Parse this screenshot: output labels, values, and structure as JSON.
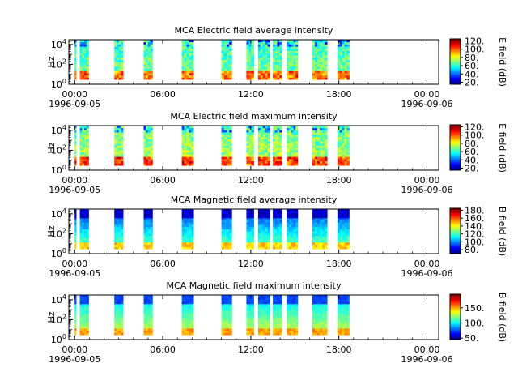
{
  "chart_data": [
    {
      "type": "heatmap",
      "title": "MCA  Electric field average intensity",
      "ylabel": "Hz",
      "yscale": "log",
      "ylim": [
        1,
        30000
      ],
      "y_ticks": [
        {
          "base": "10",
          "exp": "0",
          "value": 1
        },
        {
          "base": "10",
          "exp": "2",
          "value": 100
        },
        {
          "base": "10",
          "exp": "4",
          "value": 10000
        }
      ],
      "x_ticks": [
        "00:00",
        "06:00",
        "12:00",
        "18:00",
        "00:00"
      ],
      "x_tick_hours": [
        0,
        6,
        12,
        18,
        24
      ],
      "date_start": "1996-09-05",
      "date_end": "1996-09-06",
      "colorbar": {
        "label": "E field (dB)",
        "range": [
          15,
          125
        ],
        "ticks": [
          20,
          40,
          60,
          80,
          100,
          120
        ],
        "tick_labels": [
          "20.",
          "40.",
          "60.",
          "80.",
          "100.",
          "120."
        ]
      },
      "data_segments_hours": [
        [
          0.0,
          0.1
        ],
        [
          0.35,
          0.95
        ],
        [
          2.7,
          3.3
        ],
        [
          4.7,
          5.3
        ],
        [
          7.3,
          8.1
        ],
        [
          10.0,
          10.7
        ],
        [
          11.7,
          12.2
        ],
        [
          12.5,
          13.3
        ],
        [
          13.5,
          14.1
        ],
        [
          14.45,
          15.2
        ],
        [
          16.2,
          17.2
        ],
        [
          17.9,
          18.7
        ]
      ],
      "dominant_level_db": 60
    },
    {
      "type": "heatmap",
      "title": "MCA  Electric field maximum intensity",
      "ylabel": "Hz",
      "yscale": "log",
      "ylim": [
        1,
        30000
      ],
      "y_ticks": [
        {
          "base": "10",
          "exp": "0",
          "value": 1
        },
        {
          "base": "10",
          "exp": "2",
          "value": 100
        },
        {
          "base": "10",
          "exp": "4",
          "value": 10000
        }
      ],
      "x_ticks": [
        "00:00",
        "06:00",
        "12:00",
        "18:00",
        "00:00"
      ],
      "x_tick_hours": [
        0,
        6,
        12,
        18,
        24
      ],
      "date_start": "1996-09-05",
      "date_end": "1996-09-06",
      "colorbar": {
        "label": "E field (dB)",
        "range": [
          15,
          125
        ],
        "ticks": [
          20,
          40,
          60,
          80,
          100,
          120
        ],
        "tick_labels": [
          "20.",
          "40.",
          "60.",
          "80.",
          "100.",
          "120."
        ]
      },
      "data_segments_hours": [
        [
          0.0,
          0.1
        ],
        [
          0.35,
          0.95
        ],
        [
          2.7,
          3.3
        ],
        [
          4.7,
          5.3
        ],
        [
          7.3,
          8.1
        ],
        [
          10.0,
          10.7
        ],
        [
          11.7,
          12.2
        ],
        [
          12.5,
          13.3
        ],
        [
          13.5,
          14.1
        ],
        [
          14.45,
          15.2
        ],
        [
          16.2,
          17.2
        ],
        [
          17.9,
          18.7
        ]
      ],
      "dominant_level_db": 65
    },
    {
      "type": "heatmap",
      "title": "MCA  Magnetic field average intensity",
      "ylabel": "Hz",
      "yscale": "log",
      "ylim": [
        1,
        30000
      ],
      "y_ticks": [
        {
          "base": "10",
          "exp": "0",
          "value": 1
        },
        {
          "base": "10",
          "exp": "2",
          "value": 100
        },
        {
          "base": "10",
          "exp": "4",
          "value": 10000
        }
      ],
      "x_ticks": [
        "00:00",
        "06:00",
        "12:00",
        "18:00",
        "00:00"
      ],
      "x_tick_hours": [
        0,
        6,
        12,
        18,
        24
      ],
      "date_start": "1996-09-05",
      "date_end": "1996-09-06",
      "colorbar": {
        "label": "B field (dB)",
        "range": [
          70,
          185
        ],
        "ticks": [
          80,
          100,
          120,
          140,
          160,
          180
        ],
        "tick_labels": [
          "80.",
          "100.",
          "120.",
          "140.",
          "160.",
          "180."
        ]
      },
      "data_segments_hours": [
        [
          0.0,
          0.1
        ],
        [
          0.35,
          0.95
        ],
        [
          2.7,
          3.3
        ],
        [
          4.7,
          5.3
        ],
        [
          7.3,
          8.1
        ],
        [
          10.0,
          10.7
        ],
        [
          11.7,
          12.2
        ],
        [
          12.5,
          13.3
        ],
        [
          13.5,
          14.1
        ],
        [
          14.45,
          15.2
        ],
        [
          16.2,
          17.2
        ],
        [
          17.9,
          18.7
        ]
      ],
      "dominant_level_db": 110
    },
    {
      "type": "heatmap",
      "title": "MCA  Magnetic field maximum intensity",
      "ylabel": "Hz",
      "yscale": "log",
      "ylim": [
        1,
        30000
      ],
      "y_ticks": [
        {
          "base": "10",
          "exp": "0",
          "value": 1
        },
        {
          "base": "10",
          "exp": "2",
          "value": 100
        },
        {
          "base": "10",
          "exp": "4",
          "value": 10000
        }
      ],
      "x_ticks": [
        "00:00",
        "06:00",
        "12:00",
        "18:00",
        "00:00"
      ],
      "x_tick_hours": [
        0,
        6,
        12,
        18,
        24
      ],
      "date_start": "1996-09-05",
      "date_end": "1996-09-06",
      "colorbar": {
        "label": "B field (dB)",
        "range": [
          45,
          195
        ],
        "ticks": [
          50,
          100,
          150
        ],
        "tick_labels": [
          "50.",
          "100.",
          "150."
        ]
      },
      "data_segments_hours": [
        [
          0.0,
          0.1
        ],
        [
          0.35,
          0.95
        ],
        [
          2.7,
          3.3
        ],
        [
          4.7,
          5.3
        ],
        [
          7.3,
          8.1
        ],
        [
          10.0,
          10.7
        ],
        [
          11.7,
          12.2
        ],
        [
          12.5,
          13.3
        ],
        [
          13.5,
          14.1
        ],
        [
          14.45,
          15.2
        ],
        [
          16.2,
          17.2
        ],
        [
          17.9,
          18.7
        ]
      ],
      "dominant_level_db": 115
    }
  ]
}
